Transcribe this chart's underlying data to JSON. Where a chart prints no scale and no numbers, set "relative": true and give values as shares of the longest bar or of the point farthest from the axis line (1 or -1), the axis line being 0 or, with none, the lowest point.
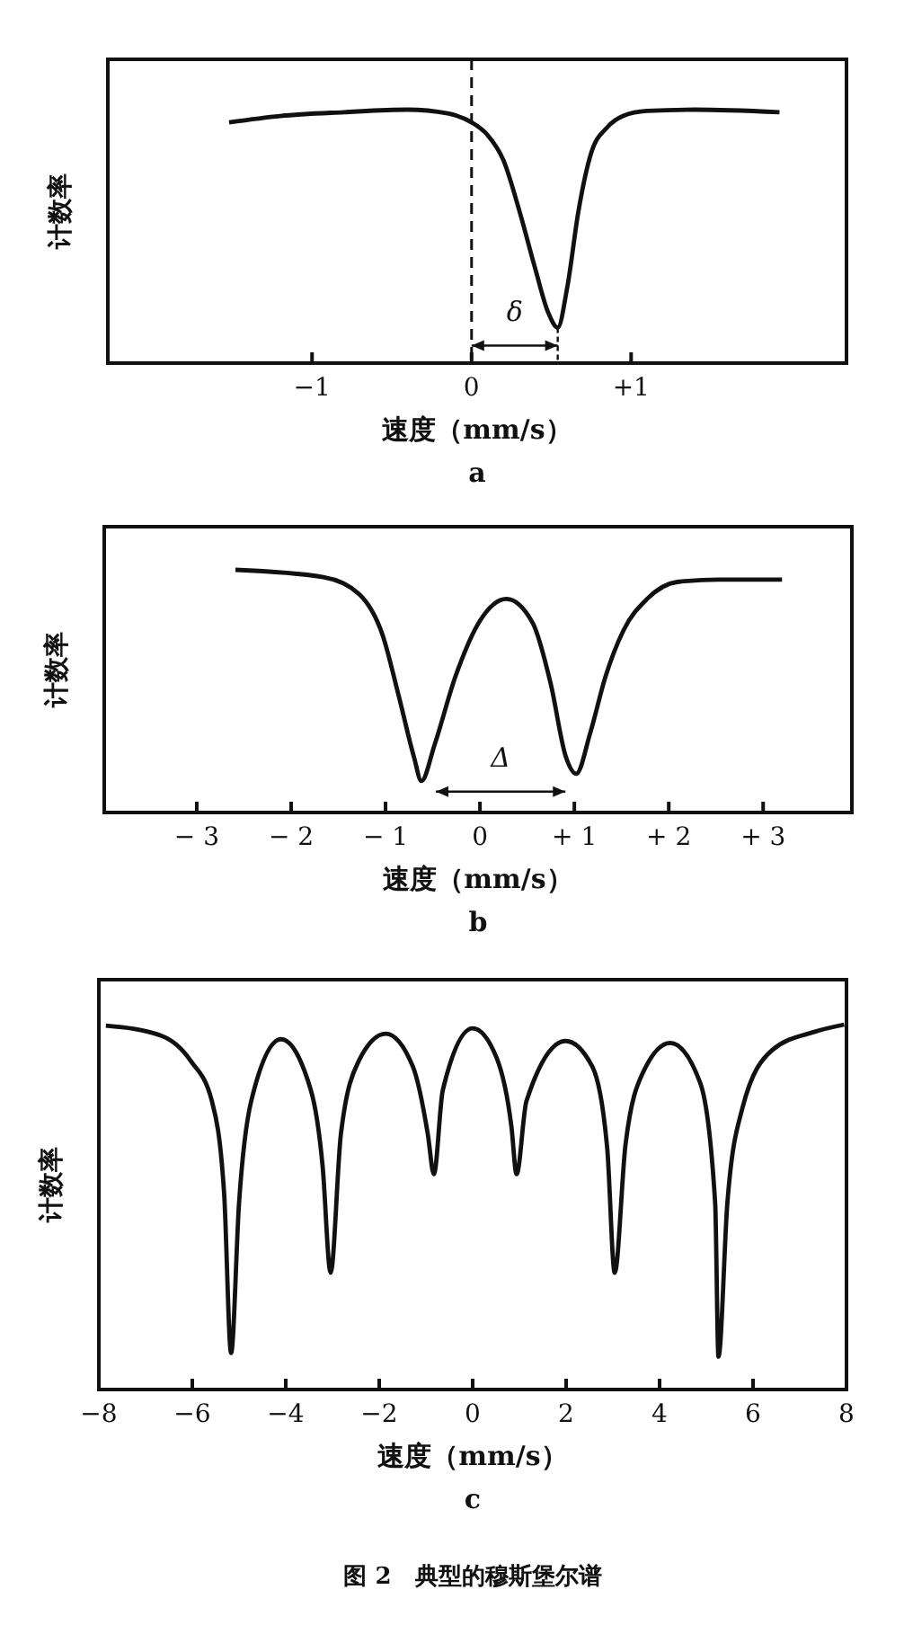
{
  "chart_data": [
    {
      "type": "line",
      "title": "a",
      "xlabel": "速度（mm/s）",
      "ylabel": "计数率",
      "relative": true,
      "xlim": [
        -2.28,
        2.35
      ],
      "xticks": [
        {
          "value": -1,
          "label": "−1"
        },
        0,
        {
          "value": 1,
          "label": "+1"
        }
      ],
      "grid": false,
      "marker": "none",
      "line_style": "solid",
      "x": [
        -1.52,
        -1.2,
        -0.8,
        -0.4,
        -0.15,
        0,
        0.1,
        0.2,
        0.3,
        0.4,
        0.48,
        0.54,
        0.6,
        0.67,
        0.75,
        0.85,
        0.95,
        1.1,
        1.4,
        1.93
      ],
      "series": [
        {
          "color": "#111111",
          "values": [
            0.95,
            0.975,
            0.99,
            1.0,
            0.985,
            0.95,
            0.9,
            0.8,
            0.6,
            0.37,
            0.2,
            0.14,
            0.3,
            0.6,
            0.83,
            0.93,
            0.975,
            0.995,
            1.0,
            0.99
          ]
        }
      ],
      "ref_lines": [
        {
          "axis": "x",
          "value": 0,
          "line_style": "dashed",
          "color": "#111111"
        }
      ],
      "annotations": [
        "δ"
      ]
    },
    {
      "type": "line",
      "title": "b",
      "xlabel": "速度（mm/s）",
      "ylabel": "计数率",
      "relative": true,
      "xlim": [
        -3.98,
        3.94
      ],
      "xticks": [
        {
          "value": -3,
          "label": "− 3"
        },
        {
          "value": -2,
          "label": "− 2"
        },
        {
          "value": -1,
          "label": "− 1"
        },
        0,
        {
          "value": 1,
          "label": "+ 1"
        },
        {
          "value": 2,
          "label": "+ 2"
        },
        {
          "value": 3,
          "label": "+ 3"
        }
      ],
      "grid": false,
      "marker": "none",
      "line_style": "solid",
      "x": [
        -2.59,
        -1.66,
        -1.28,
        -1.03,
        -0.86,
        -0.7,
        -0.62,
        -0.48,
        -0.26,
        0,
        0.28,
        0.56,
        0.75,
        0.91,
        1.02,
        1.17,
        1.33,
        1.52,
        1.77,
        2.09,
        2.53,
        3.2
      ],
      "series": [
        {
          "color": "#111111",
          "values": [
            1.0,
            0.97,
            0.9,
            0.73,
            0.48,
            0.23,
            0.13,
            0.28,
            0.56,
            0.79,
            0.88,
            0.78,
            0.53,
            0.23,
            0.16,
            0.33,
            0.56,
            0.75,
            0.88,
            0.95,
            0.96,
            0.96
          ]
        }
      ],
      "annotations": [
        "Δ"
      ]
    },
    {
      "type": "line",
      "title": "c",
      "xlabel": "速度（mm/s）",
      "ylabel": "计数率",
      "relative": true,
      "xlim": [
        -8,
        8
      ],
      "xticks": [
        {
          "value": -8,
          "label": "−8"
        },
        {
          "value": -6,
          "label": "−6"
        },
        {
          "value": -4,
          "label": "−4"
        },
        {
          "value": -2,
          "label": "−2"
        },
        0,
        2,
        4,
        6,
        8
      ],
      "grid": false,
      "marker": "none",
      "line_style": "solid",
      "x": [
        -7.85,
        -6.67,
        -6.03,
        -5.58,
        -5.32,
        -5.17,
        -5.0,
        -4.74,
        -4.1,
        -3.59,
        -3.21,
        -3.04,
        -2.82,
        -2.44,
        -1.86,
        -1.28,
        -0.96,
        -0.83,
        -0.64,
        0,
        0.51,
        0.83,
        0.94,
        1.15,
        1.99,
        2.56,
        2.88,
        3.04,
        3.27,
        3.65,
        4.23,
        4.87,
        5.19,
        5.26,
        5.45,
        5.77,
        6.41,
        7.31,
        7.95
      ],
      "series": [
        {
          "color": "#111111",
          "values": [
            0.997,
            0.97,
            0.9,
            0.79,
            0.54,
            0.1,
            0.51,
            0.79,
            0.96,
            0.87,
            0.61,
            0.32,
            0.7,
            0.9,
            0.975,
            0.885,
            0.7,
            0.59,
            0.82,
            0.99,
            0.91,
            0.72,
            0.59,
            0.79,
            0.955,
            0.885,
            0.66,
            0.32,
            0.67,
            0.87,
            0.95,
            0.84,
            0.51,
            0.09,
            0.51,
            0.77,
            0.93,
            0.98,
            1.0
          ]
        }
      ],
      "annotations": [
        "图 2　典型的穆斯堡尔谱"
      ]
    }
  ]
}
